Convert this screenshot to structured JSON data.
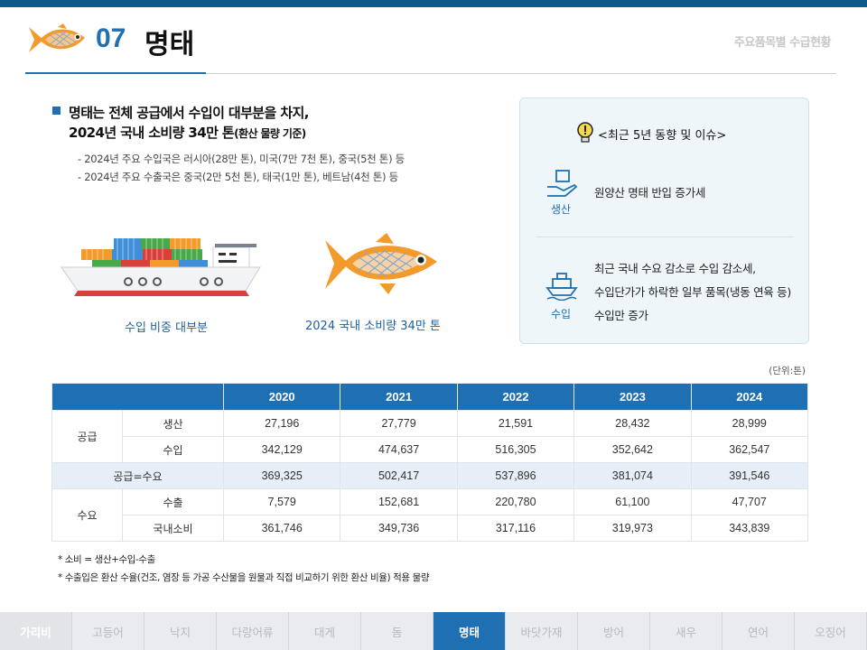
{
  "header": {
    "number": "07",
    "title": "명태",
    "right_label": "주요품목별 수급현황"
  },
  "summary": {
    "headline_line1": "명태는 전체 공급에서 수입이 대부분을 차지,",
    "headline_line2": "2024년 국내 소비량 34만 톤",
    "headline_note": "(환산 물량 기준)",
    "bullets": [
      "- 2024년 주요 수입국은 러시아(28만 톤), 미국(7만 7천 톤), 중국(5천 톤) 등",
      "- 2024년 주요 수출국은 중국(2만 5천 톤), 태국(1만 톤), 베트남(4천 톤) 등"
    ]
  },
  "captions": {
    "ship": "수입 비중 대부분",
    "fish": "2024 국내 소비량 34만 톤"
  },
  "issues": {
    "title": "<최근 5년 동향 및 이슈>",
    "production_label": "생산",
    "production_text": "원양산 명태 반입 증가세",
    "import_label": "수입",
    "import_lines": [
      "최근 국내 수요 감소로 수입 감소세,",
      "수입단가가 하락한 일부 품목(냉동 연육 등)",
      "수입만 증가"
    ]
  },
  "table": {
    "unit": "(단위:톤)",
    "years": [
      "2020",
      "2021",
      "2022",
      "2023",
      "2024"
    ],
    "supply_label": "공급",
    "demand_label": "수요",
    "rows": {
      "production": {
        "label": "생산",
        "values": [
          "27,196",
          "27,779",
          "21,591",
          "28,432",
          "28,999"
        ]
      },
      "import": {
        "label": "수입",
        "values": [
          "342,129",
          "474,637",
          "516,305",
          "352,642",
          "362,547"
        ]
      },
      "total": {
        "label": "공급=수요",
        "values": [
          "369,325",
          "502,417",
          "537,896",
          "381,074",
          "391,546"
        ]
      },
      "export": {
        "label": "수출",
        "values": [
          "7,579",
          "152,681",
          "220,780",
          "61,100",
          "47,707"
        ]
      },
      "consumption": {
        "label": "국내소비",
        "values": [
          "361,746",
          "349,736",
          "317,116",
          "319,973",
          "343,839"
        ]
      }
    }
  },
  "notes": [
    "* 소비 = 생산+수입-수출",
    "* 수출입은 환산 수율(건조, 염장 등 가공 수산물을 원물과 직접 비교하기 위한 환산 비율) 적용 물량"
  ],
  "nav": [
    "가리비",
    "고등어",
    "낙지",
    "다랑어류",
    "대게",
    "돔",
    "명태",
    "바닷가재",
    "방어",
    "새우",
    "연어",
    "오징어"
  ],
  "colors": {
    "primary": "#1f6fb3",
    "fish_orange": "#f39a2b",
    "panel_bg": "#eef6fa"
  }
}
